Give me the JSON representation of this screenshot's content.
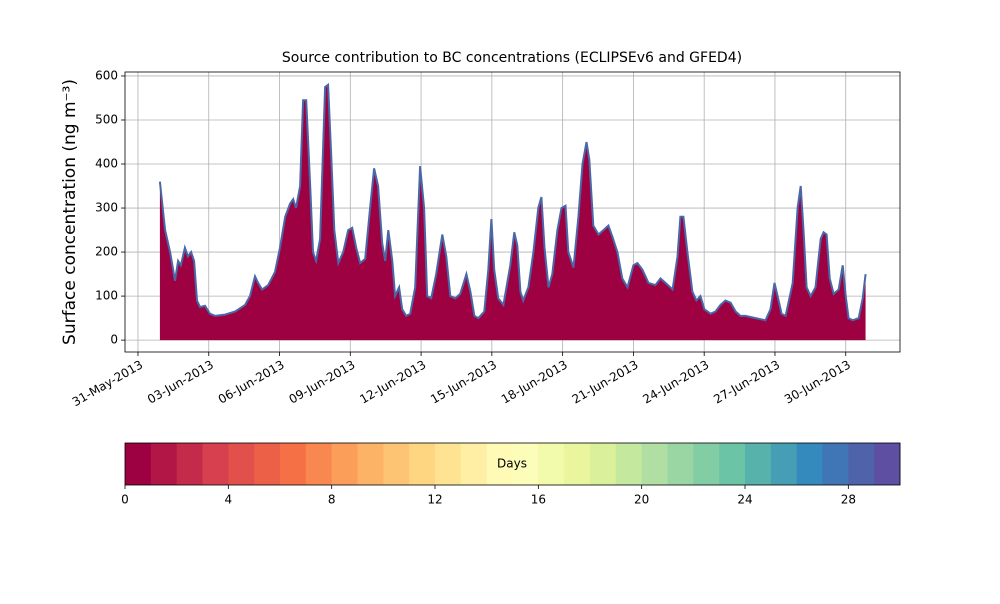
{
  "chart_data": [
    {
      "type": "area",
      "title": "Source contribution to BC concentrations (ECLIPSEv6 and GFED4)",
      "y_label": "Surface concentration (ng m⁻³)",
      "color": "#9e0142",
      "line_color": "#4a67a8",
      "grid": true,
      "xlim": [
        -0.55,
        32.3
      ],
      "ylim": [
        -27,
        609
      ],
      "xticks": [
        {
          "value": 0,
          "label": "31-May-2013"
        },
        {
          "value": 3,
          "label": "03-Jun-2013"
        },
        {
          "value": 6,
          "label": "06-Jun-2013"
        },
        {
          "value": 9,
          "label": "09-Jun-2013"
        },
        {
          "value": 12,
          "label": "12-Jun-2013"
        },
        {
          "value": 15,
          "label": "15-Jun-2013"
        },
        {
          "value": 18,
          "label": "18-Jun-2013"
        },
        {
          "value": 21,
          "label": "21-Jun-2013"
        },
        {
          "value": 24,
          "label": "24-Jun-2013"
        },
        {
          "value": 27,
          "label": "27-Jun-2013"
        },
        {
          "value": 30,
          "label": "30-Jun-2013"
        }
      ],
      "yticks": [
        0,
        100,
        200,
        300,
        400,
        500,
        600
      ],
      "x": [
        0.93,
        1.15,
        1.36,
        1.57,
        1.7,
        1.82,
        1.99,
        2.12,
        2.25,
        2.38,
        2.5,
        2.63,
        2.84,
        3.05,
        3.27,
        3.69,
        4.12,
        4.54,
        4.75,
        4.96,
        5.09,
        5.26,
        5.52,
        5.81,
        6.02,
        6.24,
        6.45,
        6.58,
        6.7,
        6.87,
        7.0,
        7.13,
        7.3,
        7.42,
        7.55,
        7.72,
        7.93,
        8.06,
        8.19,
        8.32,
        8.49,
        8.7,
        8.91,
        9.08,
        9.25,
        9.42,
        9.63,
        9.84,
        10.01,
        10.18,
        10.35,
        10.48,
        10.61,
        10.78,
        10.9,
        11.07,
        11.2,
        11.37,
        11.54,
        11.75,
        11.96,
        12.13,
        12.26,
        12.43,
        12.64,
        12.9,
        13.07,
        13.24,
        13.45,
        13.66,
        13.92,
        14.09,
        14.26,
        14.43,
        14.68,
        14.85,
        14.98,
        15.1,
        15.27,
        15.49,
        15.78,
        15.95,
        16.08,
        16.21,
        16.33,
        16.55,
        16.76,
        16.97,
        17.1,
        17.23,
        17.4,
        17.56,
        17.78,
        17.95,
        18.12,
        18.24,
        18.46,
        18.67,
        18.84,
        19.01,
        19.13,
        19.3,
        19.52,
        19.73,
        19.94,
        20.11,
        20.32,
        20.53,
        20.75,
        21.0,
        21.17,
        21.38,
        21.64,
        21.93,
        22.15,
        22.36,
        22.66,
        22.87,
        22.99,
        23.12,
        23.29,
        23.5,
        23.67,
        23.84,
        24.01,
        24.27,
        24.48,
        24.69,
        24.9,
        25.12,
        25.33,
        25.54,
        25.75,
        26.18,
        26.6,
        26.81,
        26.98,
        27.11,
        27.28,
        27.45,
        27.75,
        27.96,
        28.09,
        28.21,
        28.34,
        28.51,
        28.72,
        28.94,
        29.06,
        29.19,
        29.32,
        29.49,
        29.7,
        29.87,
        30.0,
        30.12,
        30.29,
        30.55,
        30.72,
        30.84
      ],
      "values": [
        360,
        250,
        200,
        135,
        180,
        170,
        210,
        190,
        200,
        180,
        90,
        75,
        78,
        60,
        55,
        58,
        65,
        80,
        100,
        145,
        130,
        115,
        125,
        155,
        210,
        280,
        310,
        320,
        300,
        350,
        545,
        545,
        350,
        200,
        180,
        230,
        575,
        580,
        420,
        250,
        175,
        200,
        250,
        255,
        210,
        175,
        185,
        300,
        390,
        350,
        220,
        180,
        250,
        180,
        100,
        120,
        70,
        55,
        60,
        120,
        395,
        300,
        100,
        95,
        150,
        240,
        190,
        100,
        95,
        105,
        150,
        110,
        55,
        50,
        65,
        160,
        275,
        160,
        95,
        80,
        170,
        245,
        215,
        110,
        90,
        120,
        200,
        300,
        325,
        210,
        120,
        150,
        250,
        300,
        305,
        200,
        165,
        280,
        400,
        450,
        410,
        260,
        240,
        250,
        260,
        235,
        200,
        140,
        120,
        170,
        175,
        160,
        130,
        125,
        140,
        130,
        115,
        190,
        280,
        280,
        200,
        110,
        90,
        100,
        70,
        60,
        65,
        80,
        90,
        85,
        65,
        55,
        55,
        50,
        45,
        70,
        130,
        100,
        60,
        55,
        130,
        300,
        350,
        250,
        120,
        100,
        120,
        230,
        245,
        240,
        140,
        105,
        115,
        170,
        100,
        50,
        45,
        50,
        95,
        150
      ]
    },
    {
      "type": "colorbar",
      "label": "Days",
      "xlim": [
        0,
        30
      ],
      "xticks": [
        0,
        4,
        8,
        12,
        16,
        20,
        24,
        28
      ],
      "colors": [
        "#9e0142",
        "#d53e4f",
        "#f46d43",
        "#fdae61",
        "#fee08b",
        "#ffffbf",
        "#e6f598",
        "#abdda4",
        "#66c2a5",
        "#3288bd",
        "#5e4fa2"
      ]
    }
  ]
}
